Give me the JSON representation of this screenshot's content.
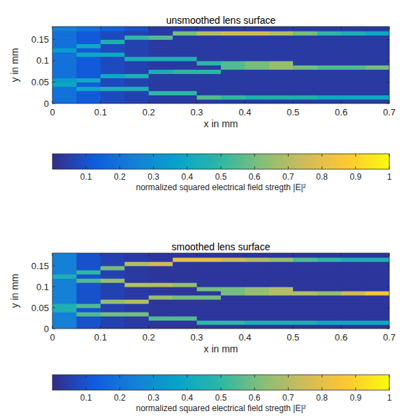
{
  "chart_data": [
    {
      "type": "heatmap",
      "title": "unsmoothed lens surface",
      "x_label": "x in mm",
      "y_label": "y in mm",
      "xlim": [
        0,
        0.7
      ],
      "ylim": [
        0,
        0.18
      ],
      "xticks": [
        0,
        0.1,
        0.2,
        0.3,
        0.4,
        0.5,
        0.6,
        0.7
      ],
      "yticks": [
        0,
        0.05,
        0.1,
        0.15
      ],
      "x_edges": [
        0,
        0.05,
        0.1,
        0.15,
        0.2,
        0.25,
        0.3,
        0.35,
        0.4,
        0.45,
        0.5,
        0.55,
        0.6,
        0.65,
        0.7
      ],
      "y_edges": [
        0,
        0.01,
        0.02,
        0.03,
        0.04,
        0.05,
        0.06,
        0.07,
        0.08,
        0.09,
        0.1,
        0.11,
        0.12,
        0.13,
        0.14,
        0.15,
        0.16,
        0.17,
        0.18
      ],
      "cells": [
        [
          0.2,
          0.12,
          0.08,
          0.06,
          0.04,
          0.04,
          0.04,
          0.04,
          0.04,
          0.04,
          0.04,
          0.04,
          0.04,
          0.04
        ],
        [
          0.2,
          0.12,
          0.08,
          0.06,
          0.04,
          0.04,
          0.55,
          0.5,
          0.45,
          0.45,
          0.45,
          0.4,
          0.4,
          0.4
        ],
        [
          0.2,
          0.12,
          0.08,
          0.06,
          0.5,
          0.5,
          0.04,
          0.04,
          0.04,
          0.04,
          0.04,
          0.04,
          0.04,
          0.04
        ],
        [
          0.2,
          0.4,
          0.45,
          0.45,
          0.04,
          0.04,
          0.04,
          0.04,
          0.04,
          0.04,
          0.04,
          0.04,
          0.04,
          0.04
        ],
        [
          0.4,
          0.12,
          0.08,
          0.06,
          0.04,
          0.04,
          0.04,
          0.04,
          0.04,
          0.04,
          0.04,
          0.04,
          0.04,
          0.04
        ],
        [
          0.35,
          0.4,
          0.08,
          0.06,
          0.04,
          0.04,
          0.04,
          0.04,
          0.04,
          0.04,
          0.04,
          0.04,
          0.04,
          0.04
        ],
        [
          0.2,
          0.12,
          0.4,
          0.45,
          0.04,
          0.04,
          0.04,
          0.04,
          0.04,
          0.04,
          0.04,
          0.04,
          0.04,
          0.04
        ],
        [
          0.2,
          0.12,
          0.08,
          0.06,
          0.45,
          0.5,
          0.5,
          0.04,
          0.04,
          0.04,
          0.04,
          0.04,
          0.04,
          0.04
        ],
        [
          0.2,
          0.12,
          0.08,
          0.06,
          0.04,
          0.04,
          0.04,
          0.55,
          0.6,
          0.65,
          0.6,
          0.55,
          0.55,
          0.6
        ],
        [
          0.2,
          0.12,
          0.08,
          0.06,
          0.04,
          0.04,
          0.5,
          0.55,
          0.6,
          0.65,
          0.04,
          0.04,
          0.04,
          0.04
        ],
        [
          0.2,
          0.12,
          0.08,
          0.45,
          0.45,
          0.45,
          0.04,
          0.04,
          0.04,
          0.04,
          0.04,
          0.04,
          0.04,
          0.04
        ],
        [
          0.2,
          0.4,
          0.4,
          0.06,
          0.04,
          0.04,
          0.04,
          0.04,
          0.04,
          0.04,
          0.04,
          0.04,
          0.04,
          0.04
        ],
        [
          0.35,
          0.12,
          0.08,
          0.06,
          0.04,
          0.04,
          0.04,
          0.04,
          0.04,
          0.04,
          0.04,
          0.04,
          0.04,
          0.04
        ],
        [
          0.2,
          0.4,
          0.08,
          0.06,
          0.04,
          0.04,
          0.04,
          0.04,
          0.04,
          0.04,
          0.04,
          0.04,
          0.04,
          0.04
        ],
        [
          0.2,
          0.12,
          0.45,
          0.06,
          0.04,
          0.04,
          0.04,
          0.04,
          0.04,
          0.04,
          0.04,
          0.04,
          0.04,
          0.04
        ],
        [
          0.2,
          0.12,
          0.08,
          0.5,
          0.55,
          0.04,
          0.04,
          0.04,
          0.04,
          0.04,
          0.04,
          0.04,
          0.04,
          0.04
        ],
        [
          0.2,
          0.12,
          0.08,
          0.06,
          0.04,
          0.6,
          0.7,
          0.75,
          0.75,
          0.7,
          0.6,
          0.5,
          0.45,
          0.4
        ],
        [
          0.25,
          0.2,
          0.15,
          0.1,
          0.04,
          0.04,
          0.04,
          0.04,
          0.04,
          0.04,
          0.04,
          0.04,
          0.04,
          0.04
        ]
      ],
      "colorbar": {
        "label": "normalized squared electrical field stregth |E|²",
        "lim": [
          0,
          1
        ],
        "ticks": [
          0.1,
          0.2,
          0.3,
          0.4,
          0.5,
          0.6,
          0.7,
          0.8,
          0.9,
          1
        ]
      }
    },
    {
      "type": "heatmap",
      "title": "smoothed lens surface",
      "x_label": "x in mm",
      "y_label": "y in mm",
      "xlim": [
        0,
        0.7
      ],
      "ylim": [
        0,
        0.18
      ],
      "xticks": [
        0,
        0.1,
        0.2,
        0.3,
        0.4,
        0.5,
        0.6,
        0.7
      ],
      "yticks": [
        0,
        0.05,
        0.1,
        0.15
      ],
      "x_edges": [
        0,
        0.05,
        0.1,
        0.15,
        0.2,
        0.25,
        0.3,
        0.35,
        0.4,
        0.45,
        0.5,
        0.55,
        0.6,
        0.65,
        0.7
      ],
      "y_edges": [
        0,
        0.01,
        0.02,
        0.03,
        0.04,
        0.05,
        0.06,
        0.07,
        0.08,
        0.09,
        0.1,
        0.11,
        0.12,
        0.13,
        0.14,
        0.15,
        0.16,
        0.17,
        0.18
      ],
      "cells": [
        [
          0.25,
          0.1,
          0.06,
          0.04,
          0.03,
          0.03,
          0.03,
          0.03,
          0.03,
          0.03,
          0.03,
          0.03,
          0.03,
          0.03
        ],
        [
          0.25,
          0.1,
          0.06,
          0.04,
          0.03,
          0.03,
          0.5,
          0.5,
          0.45,
          0.45,
          0.45,
          0.4,
          0.4,
          0.4
        ],
        [
          0.25,
          0.1,
          0.06,
          0.04,
          0.55,
          0.55,
          0.03,
          0.03,
          0.03,
          0.03,
          0.03,
          0.03,
          0.03,
          0.03
        ],
        [
          0.25,
          0.55,
          0.6,
          0.6,
          0.03,
          0.03,
          0.03,
          0.03,
          0.03,
          0.03,
          0.03,
          0.03,
          0.03,
          0.03
        ],
        [
          0.45,
          0.1,
          0.06,
          0.04,
          0.03,
          0.03,
          0.03,
          0.03,
          0.03,
          0.03,
          0.03,
          0.03,
          0.03,
          0.03
        ],
        [
          0.45,
          0.55,
          0.06,
          0.04,
          0.03,
          0.03,
          0.03,
          0.03,
          0.03,
          0.03,
          0.03,
          0.03,
          0.03,
          0.03
        ],
        [
          0.25,
          0.1,
          0.65,
          0.7,
          0.03,
          0.03,
          0.03,
          0.03,
          0.03,
          0.03,
          0.03,
          0.03,
          0.03,
          0.03
        ],
        [
          0.25,
          0.1,
          0.06,
          0.04,
          0.65,
          0.6,
          0.6,
          0.03,
          0.03,
          0.03,
          0.03,
          0.03,
          0.03,
          0.03
        ],
        [
          0.25,
          0.1,
          0.06,
          0.04,
          0.03,
          0.03,
          0.03,
          0.6,
          0.65,
          0.7,
          0.7,
          0.65,
          0.75,
          0.85
        ],
        [
          0.25,
          0.1,
          0.06,
          0.04,
          0.03,
          0.03,
          0.6,
          0.6,
          0.65,
          0.7,
          0.03,
          0.03,
          0.03,
          0.03
        ],
        [
          0.25,
          0.1,
          0.06,
          0.7,
          0.7,
          0.65,
          0.03,
          0.03,
          0.03,
          0.03,
          0.03,
          0.03,
          0.03,
          0.03
        ],
        [
          0.25,
          0.55,
          0.65,
          0.04,
          0.03,
          0.03,
          0.03,
          0.03,
          0.03,
          0.03,
          0.03,
          0.03,
          0.03,
          0.03
        ],
        [
          0.45,
          0.1,
          0.06,
          0.04,
          0.03,
          0.03,
          0.03,
          0.03,
          0.03,
          0.03,
          0.03,
          0.03,
          0.03,
          0.03
        ],
        [
          0.25,
          0.5,
          0.06,
          0.04,
          0.03,
          0.03,
          0.03,
          0.03,
          0.03,
          0.03,
          0.03,
          0.03,
          0.03,
          0.03
        ],
        [
          0.25,
          0.1,
          0.6,
          0.04,
          0.03,
          0.03,
          0.03,
          0.03,
          0.03,
          0.03,
          0.03,
          0.03,
          0.03,
          0.03
        ],
        [
          0.25,
          0.1,
          0.06,
          0.7,
          0.75,
          0.03,
          0.03,
          0.03,
          0.03,
          0.03,
          0.03,
          0.03,
          0.03,
          0.03
        ],
        [
          0.25,
          0.1,
          0.06,
          0.04,
          0.03,
          0.8,
          0.8,
          0.75,
          0.7,
          0.65,
          0.55,
          0.5,
          0.45,
          0.45
        ],
        [
          0.25,
          0.1,
          0.06,
          0.04,
          0.03,
          0.03,
          0.03,
          0.03,
          0.03,
          0.03,
          0.03,
          0.03,
          0.03,
          0.03
        ]
      ],
      "colorbar": {
        "label": "normalized squared electrical field stregth |E|²",
        "lim": [
          0,
          1
        ],
        "ticks": [
          0.1,
          0.2,
          0.3,
          0.4,
          0.5,
          0.6,
          0.7,
          0.8,
          0.9,
          1
        ]
      }
    }
  ]
}
